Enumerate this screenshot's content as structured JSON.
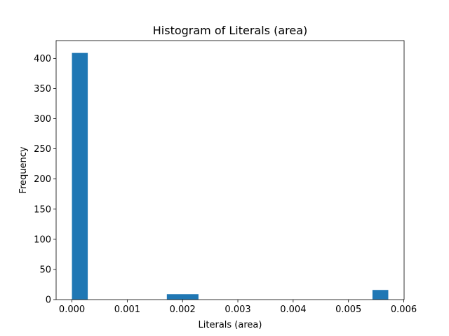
{
  "chart_data": {
    "type": "bar",
    "title": "Histogram of Literals (area)",
    "xlabel": "Literals (area)",
    "ylabel": "Frequency",
    "xlim": [
      -0.000286,
      0.006006
    ],
    "ylim": [
      0,
      429.45
    ],
    "x_ticks": [
      "0.000",
      "0.001",
      "0.002",
      "0.003",
      "0.004",
      "0.005",
      "0.006"
    ],
    "y_ticks": [
      "0",
      "50",
      "100",
      "150",
      "200",
      "250",
      "300",
      "350",
      "400"
    ],
    "bins": [
      {
        "x0": 0.0,
        "x1": 0.000286,
        "count": 409
      },
      {
        "x0": 0.001716,
        "x1": 0.002288,
        "count": 9
      },
      {
        "x0": 0.005434,
        "x1": 0.00572,
        "count": 16
      }
    ],
    "bar_color": "#1f77b4",
    "grid": false,
    "legend": "none"
  }
}
